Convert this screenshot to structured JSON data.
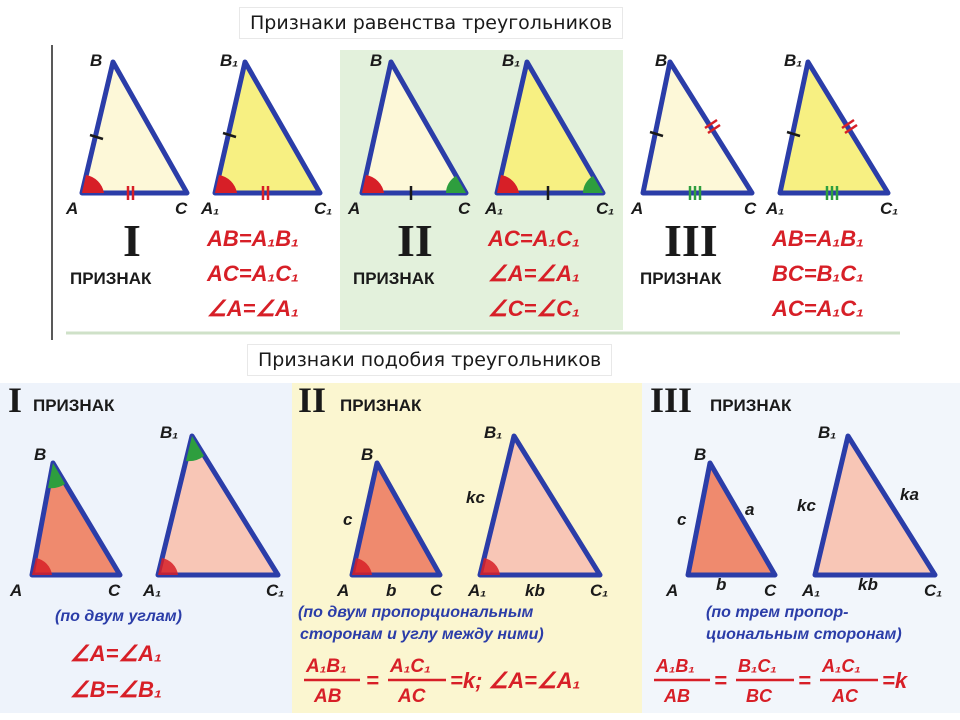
{
  "congruence": {
    "title": "Признаки равенства треугольников",
    "criteria": [
      {
        "numeral": "I",
        "word": "ПРИЗНАК",
        "f1": "AB=A₁B₁",
        "f2": "AC=A₁C₁",
        "f3": "∠A=∠A₁"
      },
      {
        "numeral": "II",
        "word": "ПРИЗНАК",
        "f1": "AC=A₁C₁",
        "f2": "∠A=∠A₁",
        "f3": "∠C=∠C₁"
      },
      {
        "numeral": "III",
        "word": "ПРИЗНАК",
        "f1": "AB=A₁B₁",
        "f2": "BC=B₁C₁",
        "f3": "AC=A₁C₁"
      }
    ],
    "vertices": {
      "A": "A",
      "B": "B",
      "C": "C",
      "A1": "A₁",
      "B1": "B₁",
      "C1": "C₁"
    }
  },
  "similarity": {
    "title": "Признаки подобия треугольников",
    "criteria": [
      {
        "numeral": "I",
        "word": "ПРИЗНАК",
        "note1": "(по двум углам)",
        "f1": "∠A=∠A₁",
        "f2": "∠B=∠B₁"
      },
      {
        "numeral": "II",
        "word": "ПРИЗНАК",
        "note1": "(по двум пропорциональным",
        "note2": "сторонам и углу между ними)",
        "frac1_num": "A₁B₁",
        "frac1_den": "AB",
        "frac2_num": "A₁C₁",
        "frac2_den": "AC",
        "tail": "=k;  ∠A=∠A₁"
      },
      {
        "numeral": "III",
        "word": "ПРИЗНАК",
        "note1": "(по трем пропор-",
        "note2": "циональным сторонам)",
        "frac1_num": "A₁B₁",
        "frac1_den": "AB",
        "frac2_num": "B₁C₁",
        "frac2_den": "BC",
        "frac3_num": "A₁C₁",
        "frac3_den": "AC",
        "tail": "=k"
      }
    ],
    "sides": {
      "c": "c",
      "b": "b",
      "a": "a",
      "kc": "kc",
      "kb": "kb",
      "ka": "ka"
    }
  },
  "colors": {
    "outline": "#2b3da8",
    "red": "#d71f27",
    "green": "#2e9e3e",
    "light_fill": "#fdf8d8",
    "yellow_fill": "#f7f082",
    "salmon": "#ef8a6e",
    "pink": "#f8c6b6",
    "panel_green": "#e3f1dc",
    "panel_yellow": "#fbf6d0"
  }
}
